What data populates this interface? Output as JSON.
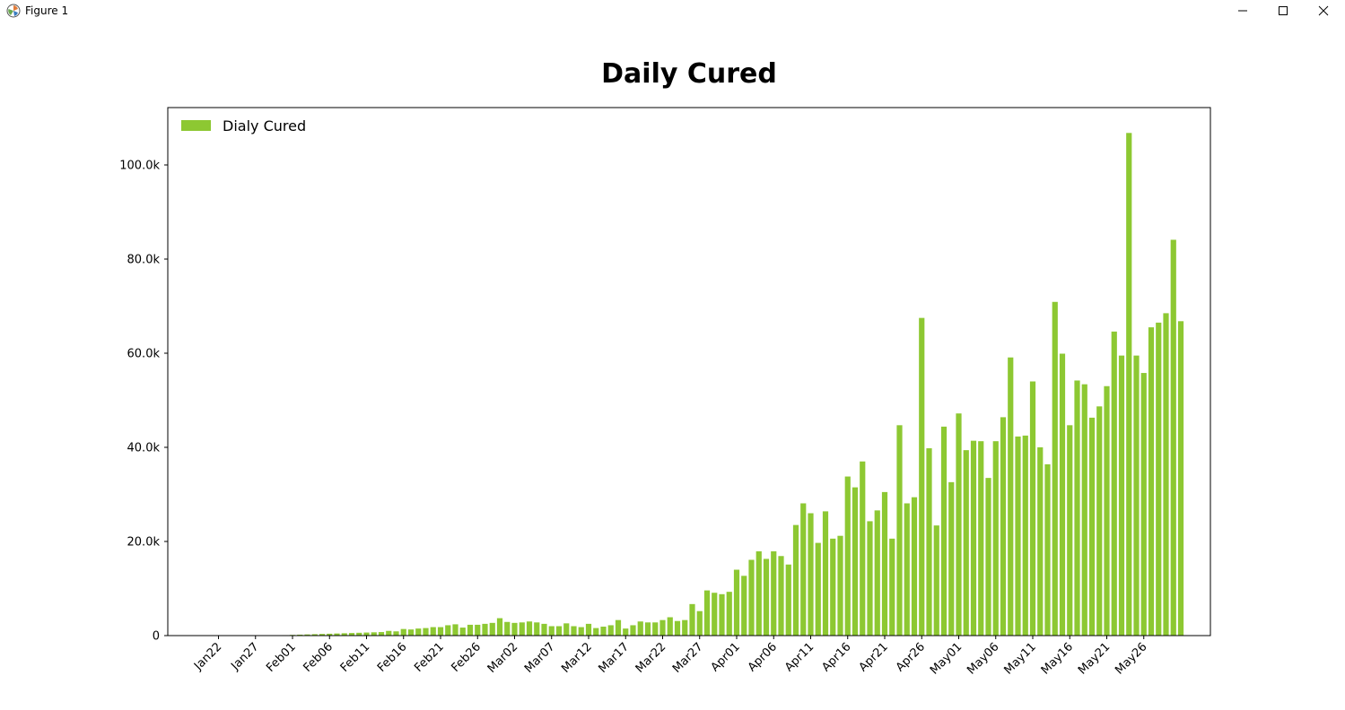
{
  "window": {
    "title": "Figure 1",
    "icon": "matplotlib-icon",
    "controls": [
      "minimize-icon",
      "maximize-icon",
      "close-icon"
    ]
  },
  "colors": {
    "bar": "#8dc832",
    "axis": "#000000",
    "background": "#ffffff"
  },
  "chart_data": {
    "type": "bar",
    "title": "Daily Cured",
    "xlabel": "",
    "ylabel": "",
    "legend": {
      "label": "Dialy Cured",
      "placement": "top-left"
    },
    "ylim": [
      0,
      112500
    ],
    "y_ticks": [
      0,
      20000,
      40000,
      60000,
      80000,
      100000
    ],
    "y_tick_labels": [
      "0",
      "20.0k",
      "40.0k",
      "60.0k",
      "80.0k",
      "100.0k"
    ],
    "x_tick_labels": [
      "Jan22",
      "Jan27",
      "Feb01",
      "Feb06",
      "Feb11",
      "Feb16",
      "Feb21",
      "Feb26",
      "Mar02",
      "Mar07",
      "Mar12",
      "Mar17",
      "Mar22",
      "Mar27",
      "Apr01",
      "Apr06",
      "Apr11",
      "Apr16",
      "Apr21",
      "Apr26",
      "May01",
      "May06",
      "May11",
      "May16",
      "May21",
      "May26"
    ],
    "x_tick_interval_days": 5,
    "start_date": "Jan22",
    "grid": false,
    "values": [
      0,
      0,
      0,
      0,
      0,
      0,
      0,
      0,
      50,
      100,
      150,
      200,
      250,
      300,
      350,
      400,
      450,
      500,
      550,
      600,
      650,
      700,
      750,
      1000,
      900,
      1400,
      1300,
      1500,
      1600,
      1800,
      1800,
      2200,
      2400,
      1700,
      2300,
      2300,
      2500,
      2700,
      3700,
      2900,
      2700,
      2800,
      3000,
      2800,
      2500,
      2000,
      2000,
      2600,
      2000,
      1800,
      2500,
      1600,
      1900,
      2200,
      3300,
      1500,
      2200,
      3000,
      2800,
      2800,
      3300,
      3900,
      3100,
      3300,
      6700,
      5200,
      9600,
      9100,
      8800,
      9300,
      14000,
      12700,
      16100,
      17900,
      16300,
      17900,
      16900,
      15100,
      23500,
      28100,
      26000,
      19700,
      26400,
      20600,
      21200,
      33800,
      31500,
      37000,
      24300,
      26600,
      30500,
      20600,
      44700,
      28100,
      29400,
      67500,
      39800,
      23400,
      44400,
      32600,
      47200,
      39400,
      41400,
      41300,
      33500,
      41300,
      46400,
      59100,
      42300,
      42500,
      54000,
      40000,
      36400,
      70900,
      59900,
      44700,
      54200,
      53400,
      46300,
      48700,
      53000,
      64600,
      59500,
      106800,
      59500,
      55800,
      65500,
      66500,
      68500,
      84100,
      66800
    ]
  }
}
